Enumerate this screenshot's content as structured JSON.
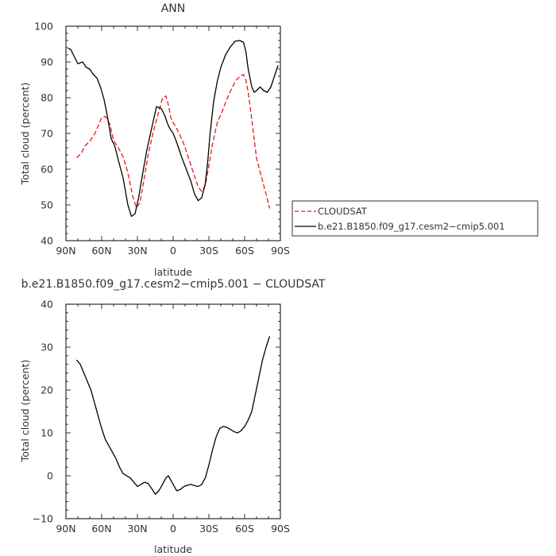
{
  "chart_data": [
    {
      "type": "line",
      "title": "ANN",
      "xlabel": "latitude",
      "ylabel": "Total cloud (percent)",
      "xlim": [
        90,
        -90
      ],
      "ylim": [
        40,
        100
      ],
      "x_ticks": [
        90,
        60,
        30,
        0,
        -30,
        -60,
        -90
      ],
      "x_tick_labels": [
        "90N",
        "60N",
        "30N",
        "0",
        "30S",
        "60S",
        "90S"
      ],
      "y_ticks": [
        40,
        50,
        60,
        70,
        80,
        90,
        100
      ],
      "y_tick_labels": [
        "40",
        "50",
        "60",
        "70",
        "80",
        "90",
        "100"
      ],
      "legend_placement": "right",
      "series": [
        {
          "name": "CLOUDSAT",
          "color": "#e41a1c",
          "dash": "dashed",
          "x": [
            81,
            77,
            74,
            70,
            66,
            63,
            60,
            57,
            53,
            50,
            46,
            42,
            38,
            34,
            31,
            28,
            25,
            21,
            17,
            13,
            9,
            6,
            4,
            2,
            0,
            -2,
            -5,
            -9,
            -13,
            -17,
            -21,
            -24,
            -27,
            -30,
            -33,
            -37,
            -41,
            -45,
            -49,
            -53,
            -57,
            -59,
            -61,
            -63,
            -66,
            -70,
            -74,
            -78,
            -81
          ],
          "y": [
            63.2,
            64.5,
            66.5,
            67.8,
            69.8,
            72.0,
            74.5,
            74.8,
            72.5,
            68.0,
            66.0,
            63.5,
            59.0,
            52.5,
            49.3,
            50.5,
            56.0,
            64.0,
            70.0,
            75.0,
            79.8,
            80.5,
            78.0,
            74.5,
            73.0,
            72.0,
            70.0,
            67.0,
            63.0,
            59.0,
            55.0,
            53.8,
            55.5,
            61.0,
            67.0,
            73.0,
            76.0,
            79.5,
            82.5,
            85.0,
            86.2,
            86.5,
            85.0,
            81.5,
            74.0,
            63.0,
            58.0,
            53.0,
            49.0
          ]
        },
        {
          "name": "b.e21.B1850.f09_g17.cesm2−cmip5.001",
          "color": "#000000",
          "dash": "solid",
          "x": [
            88,
            86,
            83,
            80,
            76,
            73,
            70,
            67,
            64,
            61,
            58,
            55,
            52,
            49,
            46,
            42,
            38,
            35,
            32,
            29,
            26,
            22,
            18,
            14,
            10,
            7,
            5,
            3,
            0,
            -3,
            -7,
            -11,
            -15,
            -18,
            -21,
            -24,
            -27,
            -29,
            -31,
            -34,
            -37,
            -40,
            -44,
            -48,
            -52,
            -56,
            -59,
            -61,
            -63,
            -66,
            -68,
            -70,
            -73,
            -76,
            -79,
            -82,
            -85,
            -88
          ],
          "y": [
            93.8,
            93.5,
            91.5,
            89.5,
            90.0,
            88.5,
            88.0,
            86.5,
            85.5,
            83.0,
            79.5,
            74.5,
            68.5,
            66.5,
            62.5,
            57.5,
            50.0,
            46.8,
            47.5,
            52.0,
            58.0,
            65.5,
            71.5,
            77.5,
            77.0,
            75.0,
            73.0,
            71.5,
            70.0,
            67.5,
            63.5,
            60.0,
            56.5,
            53.0,
            51.2,
            52.0,
            56.0,
            62.0,
            70.0,
            79.0,
            84.5,
            88.5,
            92.0,
            94.2,
            95.8,
            96.0,
            95.5,
            93.0,
            88.0,
            83.0,
            81.5,
            82.0,
            83.0,
            82.0,
            81.5,
            83.0,
            86.0,
            89.0
          ]
        }
      ]
    },
    {
      "type": "line",
      "title": "b.e21.B1850.f09_g17.cesm2−cmip5.001 − CLOUDSAT",
      "xlabel": "latitude",
      "ylabel": "Total cloud (percent)",
      "xlim": [
        90,
        -90
      ],
      "ylim": [
        -10,
        40
      ],
      "x_ticks": [
        90,
        60,
        30,
        0,
        -30,
        -60,
        -90
      ],
      "x_tick_labels": [
        "90N",
        "60N",
        "30N",
        "0",
        "30S",
        "60S",
        "90S"
      ],
      "y_ticks": [
        -10,
        0,
        10,
        20,
        30,
        40
      ],
      "y_tick_labels": [
        "−10",
        "0",
        "10",
        "20",
        "30",
        "40"
      ],
      "series": [
        {
          "color": "#000000",
          "dash": "solid",
          "x": [
            81,
            78,
            75,
            72,
            69,
            66,
            63,
            60,
            57,
            54,
            51,
            48,
            45,
            42,
            39,
            36,
            33,
            30,
            27,
            24,
            21,
            18,
            15,
            12,
            9,
            6,
            4,
            2,
            0,
            -3,
            -6,
            -9,
            -12,
            -15,
            -18,
            -21,
            -24,
            -27,
            -30,
            -33,
            -36,
            -39,
            -42,
            -45,
            -48,
            -51,
            -54,
            -57,
            -60,
            -63,
            -66,
            -69,
            -72,
            -75,
            -78,
            -81
          ],
          "y": [
            27.0,
            26.0,
            24.0,
            22.0,
            20.0,
            17.0,
            14.0,
            11.0,
            8.5,
            7.0,
            5.5,
            4.0,
            2.0,
            0.5,
            0.0,
            -0.5,
            -1.5,
            -2.5,
            -2.0,
            -1.5,
            -1.8,
            -3.0,
            -4.3,
            -3.5,
            -2.0,
            -0.5,
            0.0,
            -1.0,
            -2.0,
            -3.5,
            -3.2,
            -2.5,
            -2.2,
            -2.0,
            -2.3,
            -2.5,
            -2.0,
            -0.5,
            2.5,
            6.0,
            9.0,
            11.0,
            11.5,
            11.3,
            10.8,
            10.3,
            10.0,
            10.5,
            11.5,
            13.0,
            15.0,
            19.0,
            23.0,
            27.0,
            30.0,
            32.5
          ]
        }
      ]
    }
  ]
}
